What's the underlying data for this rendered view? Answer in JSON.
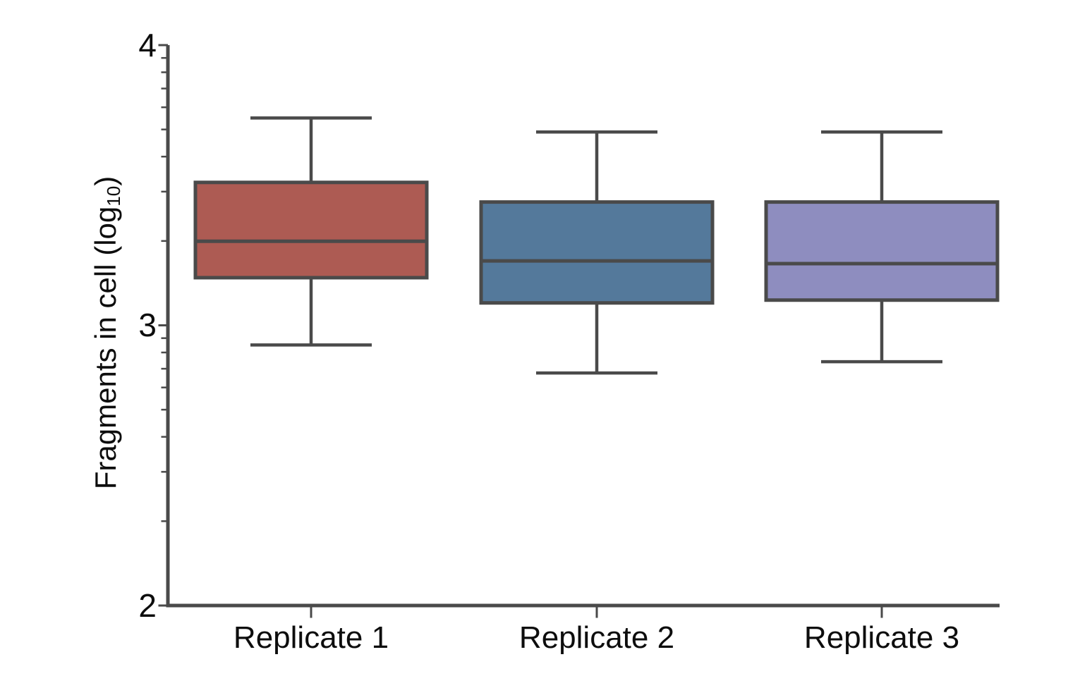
{
  "figure": {
    "background": "#ffffff",
    "line_color": "#4a4a4a",
    "text_color": "#0d0d0d"
  },
  "chart_data": {
    "type": "boxplot",
    "title": "",
    "xlabel": "",
    "ylabel": "Fragments in cell (log10)",
    "ylabel_parts": {
      "prefix": "Fragments in cell (log",
      "subscript": "10",
      "suffix": ")"
    },
    "categories": [
      "Replicate 1",
      "Replicate 2",
      "Replicate 3"
    ],
    "y_axis": {
      "scale": "log10",
      "min": 2,
      "max": 4,
      "major_ticks": [
        4,
        3,
        2
      ],
      "major_tick_labels": [
        "4",
        "3",
        "2"
      ],
      "minor_ticks": "log-spaced at 2-9 within each decade",
      "grid": false
    },
    "legend": null,
    "series": [
      {
        "name": "Replicate 1",
        "fill_color": "#ad5b53",
        "whisker_low": 2.93,
        "q1": 3.17,
        "median": 3.3,
        "q3": 3.51,
        "whisker_high": 3.74
      },
      {
        "name": "Replicate 2",
        "fill_color": "#54799b",
        "whisker_low": 2.83,
        "q1": 3.08,
        "median": 3.23,
        "q3": 3.44,
        "whisker_high": 3.69
      },
      {
        "name": "Replicate 3",
        "fill_color": "#8e8dbf",
        "whisker_low": 2.87,
        "q1": 3.09,
        "median": 3.22,
        "q3": 3.44,
        "whisker_high": 3.69
      }
    ]
  }
}
